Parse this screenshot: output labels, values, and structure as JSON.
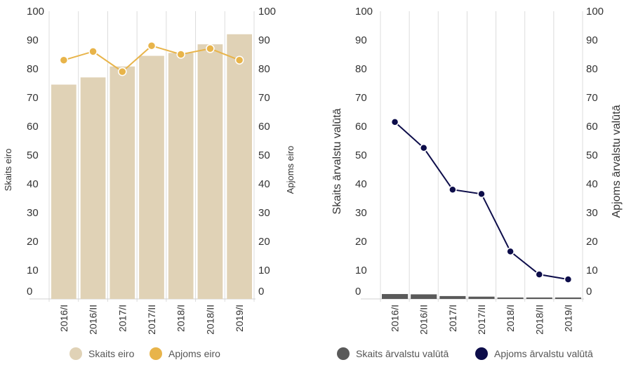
{
  "chart_data": [
    {
      "type": "bar",
      "categories": [
        "2016/I",
        "2016/II",
        "2017/I",
        "2017/II",
        "2018/I",
        "2018/II",
        "2019/I"
      ],
      "ylabel": "Skaits eiro",
      "y2label": "Apjoms eiro",
      "ylim": [
        0,
        100
      ],
      "y2lim": [
        0,
        100
      ],
      "yticks": [
        "0",
        "10",
        "20",
        "30",
        "40",
        "50",
        "60",
        "70",
        "80",
        "90",
        "100"
      ],
      "y2ticks": [
        "0",
        "10",
        "20",
        "30",
        "40",
        "50",
        "60",
        "70",
        "80",
        "90",
        "100"
      ],
      "grid": "vertical",
      "legend_position": "bottom",
      "series": [
        {
          "name": "Skaits eiro",
          "type": "bar",
          "color": "#e0d2b6",
          "values": [
            74.5,
            77,
            80.8,
            84.5,
            85.5,
            88.5,
            92
          ]
        },
        {
          "name": "Apjoms eiro",
          "type": "line",
          "color": "#e8b44a",
          "values": [
            83,
            86,
            79,
            88,
            85,
            87,
            83
          ]
        }
      ]
    },
    {
      "type": "bar",
      "categories": [
        "2016/I",
        "2016/II",
        "2017/I",
        "2017/II",
        "2018/I",
        "2018/II",
        "2019/I"
      ],
      "ylabel": "Skaits ārvalstu valūtā",
      "y2label": "Apjoms ārvalstu valūtā",
      "ylim": [
        0,
        100
      ],
      "y2lim": [
        0,
        100
      ],
      "yticks": [
        "0",
        "10",
        "20",
        "30",
        "40",
        "50",
        "60",
        "70",
        "80",
        "90",
        "100"
      ],
      "y2ticks": [
        "0",
        "10",
        "20",
        "30",
        "40",
        "50",
        "60",
        "70",
        "80",
        "90",
        "100"
      ],
      "grid": "vertical",
      "legend_position": "bottom",
      "series": [
        {
          "name": "Skaits ārvalstu valūtā",
          "type": "bar",
          "color": "#5a5a5a",
          "values": [
            1.7,
            1.6,
            1.0,
            0.8,
            0.5,
            0.5,
            0.5
          ]
        },
        {
          "name": "Apjoms ārvalstu valūtā",
          "type": "line",
          "color": "#0d0d4a",
          "values": [
            61.5,
            52.5,
            38,
            36.5,
            16.5,
            8.5,
            6.8
          ]
        }
      ]
    }
  ]
}
